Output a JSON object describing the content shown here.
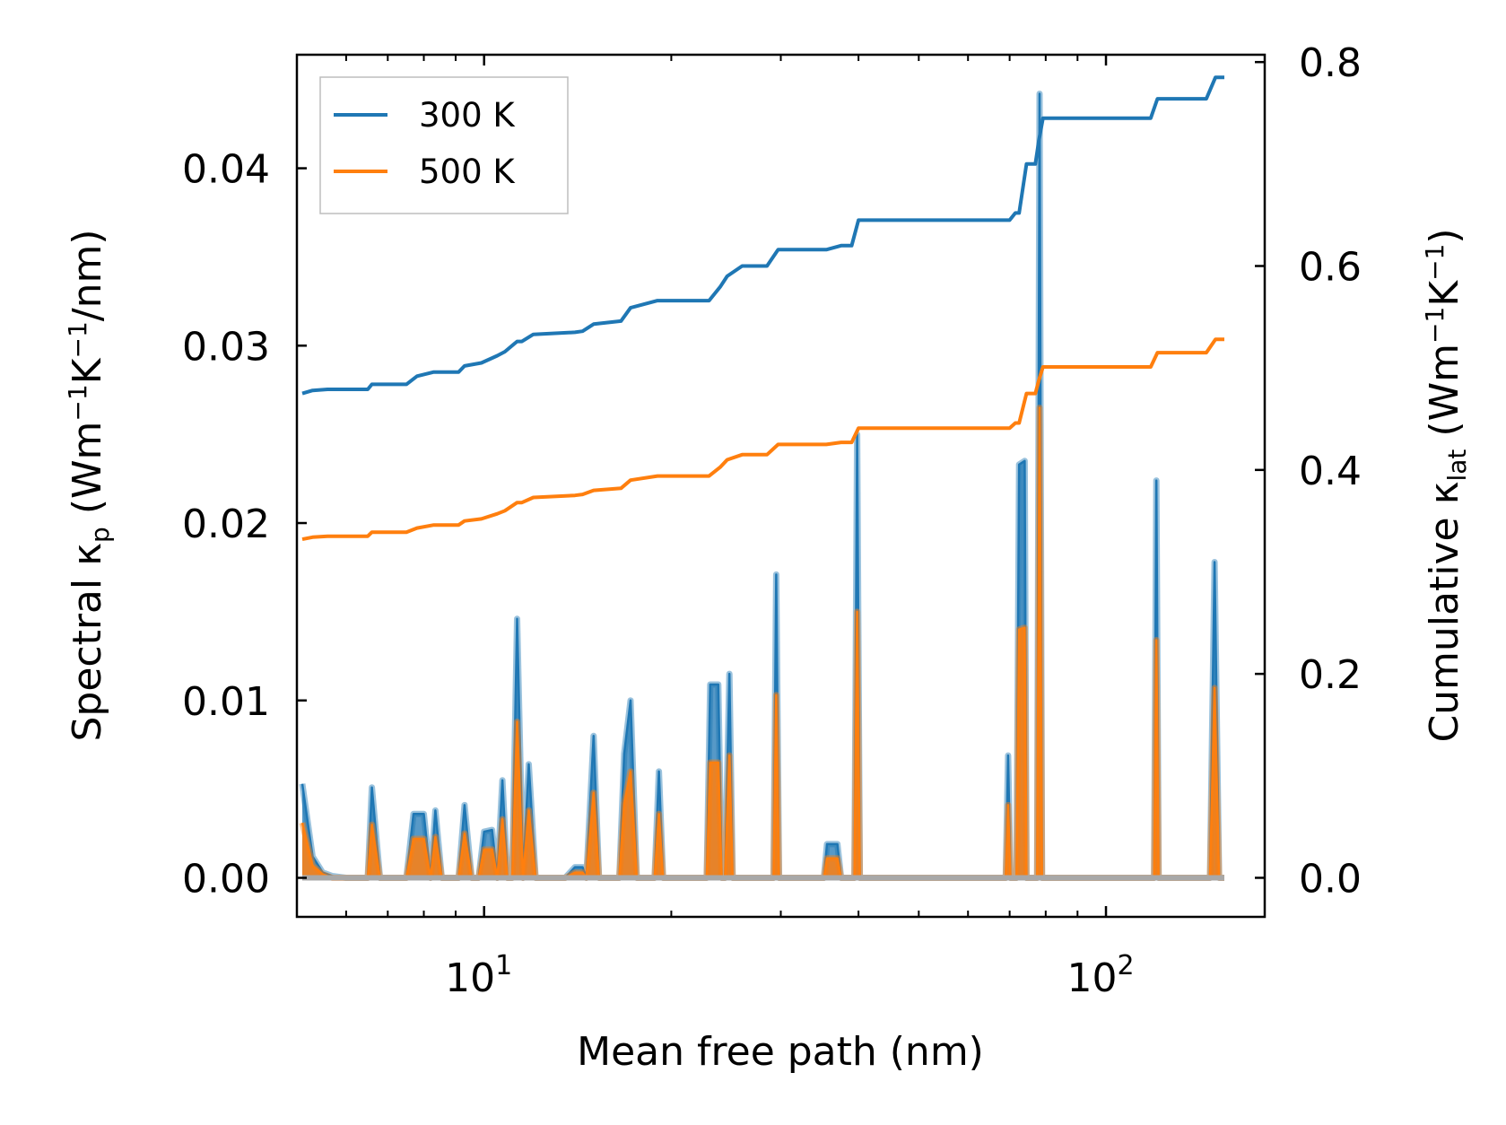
{
  "chart_data": {
    "type": "line",
    "x_scale": "log",
    "xlim": [
      5.0,
      180.0
    ],
    "xlabel": "Mean free path (nm)",
    "x_ticks": [
      {
        "value": 10,
        "base": "10",
        "exp": "1"
      },
      {
        "value": 100,
        "base": "10",
        "exp": "2"
      }
    ],
    "ylabel_left": {
      "main": "Spectral κ",
      "sub": "p",
      "unit_open": " (Wm",
      "exp1": "−1",
      "mid": "K",
      "exp2": "−1",
      "unit_close": "/nm)"
    },
    "ylabel_right": {
      "main": "Cumulative κ",
      "sub": "lat",
      "unit_open": " (Wm",
      "exp1": "−1",
      "mid": "K",
      "exp2": "−1",
      "unit_close": ")"
    },
    "ylim_left": [
      -0.0022,
      0.0464
    ],
    "ylim_right": [
      -0.0383,
      0.8072
    ],
    "yticks_left": [
      "0.00",
      "0.01",
      "0.02",
      "0.03",
      "0.04"
    ],
    "yticks_left_values": [
      0.0,
      0.01,
      0.02,
      0.03,
      0.04
    ],
    "yticks_right": [
      "0.0",
      "0.2",
      "0.4",
      "0.6",
      "0.8"
    ],
    "yticks_right_values": [
      0.0,
      0.2,
      0.4,
      0.6,
      0.8
    ],
    "legend": {
      "position": "top-left",
      "entries": [
        {
          "label": "300 K",
          "color": "#1f77b4"
        },
        {
          "label": "500 K",
          "color": "#ff7f0e"
        }
      ]
    },
    "series": [
      {
        "name": "300 K",
        "axis": "right",
        "kind": "cumulative",
        "color": "#1f77b4",
        "points": [
          [
            5.1,
            0.475
          ],
          [
            5.3,
            0.478
          ],
          [
            5.6,
            0.479
          ],
          [
            6.5,
            0.479
          ],
          [
            6.6,
            0.484
          ],
          [
            7.5,
            0.484
          ],
          [
            7.8,
            0.492
          ],
          [
            8.3,
            0.496
          ],
          [
            9.1,
            0.496
          ],
          [
            9.3,
            0.502
          ],
          [
            9.9,
            0.505
          ],
          [
            10.5,
            0.512
          ],
          [
            10.8,
            0.516
          ],
          [
            11.3,
            0.526
          ],
          [
            11.5,
            0.526
          ],
          [
            12.0,
            0.533
          ],
          [
            14.0,
            0.535
          ],
          [
            14.4,
            0.536
          ],
          [
            15.0,
            0.543
          ],
          [
            16.6,
            0.546
          ],
          [
            17.2,
            0.559
          ],
          [
            19.0,
            0.566
          ],
          [
            23.0,
            0.566
          ],
          [
            24.0,
            0.58
          ],
          [
            24.6,
            0.59
          ],
          [
            26.0,
            0.6
          ],
          [
            28.5,
            0.6
          ],
          [
            29.7,
            0.616
          ],
          [
            35.5,
            0.616
          ],
          [
            37.5,
            0.62
          ],
          [
            39.0,
            0.62
          ],
          [
            40.0,
            0.645
          ],
          [
            70.0,
            0.645
          ],
          [
            71.5,
            0.652
          ],
          [
            72.5,
            0.652
          ],
          [
            74.5,
            0.7
          ],
          [
            77.0,
            0.7
          ],
          [
            78.0,
            0.723
          ],
          [
            79.2,
            0.745
          ],
          [
            118.0,
            0.745
          ],
          [
            121.0,
            0.764
          ],
          [
            145.0,
            0.764
          ],
          [
            150.0,
            0.785
          ],
          [
            155.0,
            0.785
          ]
        ]
      },
      {
        "name": "500 K",
        "axis": "right",
        "kind": "cumulative",
        "color": "#ff7f0e",
        "points": [
          [
            5.1,
            0.332
          ],
          [
            5.3,
            0.334
          ],
          [
            5.6,
            0.335
          ],
          [
            6.5,
            0.335
          ],
          [
            6.6,
            0.339
          ],
          [
            7.5,
            0.339
          ],
          [
            7.8,
            0.343
          ],
          [
            8.3,
            0.346
          ],
          [
            9.1,
            0.346
          ],
          [
            9.3,
            0.35
          ],
          [
            9.9,
            0.352
          ],
          [
            10.5,
            0.357
          ],
          [
            10.8,
            0.36
          ],
          [
            11.3,
            0.368
          ],
          [
            11.5,
            0.368
          ],
          [
            12.0,
            0.373
          ],
          [
            14.0,
            0.375
          ],
          [
            14.4,
            0.376
          ],
          [
            15.0,
            0.38
          ],
          [
            16.6,
            0.382
          ],
          [
            17.2,
            0.39
          ],
          [
            19.0,
            0.394
          ],
          [
            23.0,
            0.394
          ],
          [
            24.0,
            0.403
          ],
          [
            24.6,
            0.41
          ],
          [
            26.0,
            0.415
          ],
          [
            28.5,
            0.415
          ],
          [
            29.7,
            0.425
          ],
          [
            35.5,
            0.425
          ],
          [
            37.5,
            0.427
          ],
          [
            39.0,
            0.427
          ],
          [
            40.0,
            0.441
          ],
          [
            70.0,
            0.441
          ],
          [
            71.5,
            0.446
          ],
          [
            72.5,
            0.446
          ],
          [
            74.5,
            0.475
          ],
          [
            77.0,
            0.475
          ],
          [
            78.0,
            0.488
          ],
          [
            79.2,
            0.501
          ],
          [
            118.0,
            0.501
          ],
          [
            121.0,
            0.515
          ],
          [
            145.0,
            0.515
          ],
          [
            150.0,
            0.528
          ],
          [
            155.0,
            0.528
          ]
        ]
      },
      {
        "name": "300 K spectral",
        "axis": "left",
        "kind": "spectral",
        "color": "#1f77b4",
        "points": [
          [
            5.1,
            0.0053
          ],
          [
            5.3,
            0.0012
          ],
          [
            5.5,
            0.0003
          ],
          [
            5.7,
            0.0001
          ],
          [
            6.0,
            0.0
          ],
          [
            6.3,
            0.0
          ],
          [
            6.5,
            0.0
          ],
          [
            6.6,
            0.0051
          ],
          [
            6.8,
            0.0
          ],
          [
            7.5,
            0.0
          ],
          [
            7.7,
            0.0036
          ],
          [
            8.0,
            0.0036
          ],
          [
            8.2,
            0.0
          ],
          [
            8.35,
            0.0038
          ],
          [
            8.55,
            0.0
          ],
          [
            9.1,
            0.0
          ],
          [
            9.3,
            0.0041
          ],
          [
            9.55,
            0.0
          ],
          [
            9.8,
            0.0
          ],
          [
            10.0,
            0.0026
          ],
          [
            10.3,
            0.0027
          ],
          [
            10.5,
            0.0
          ],
          [
            10.7,
            0.0055
          ],
          [
            10.9,
            0.0
          ],
          [
            11.1,
            0.0
          ],
          [
            11.3,
            0.0146
          ],
          [
            11.55,
            0.0
          ],
          [
            11.8,
            0.0064
          ],
          [
            12.1,
            0.0
          ],
          [
            13.5,
            0.0
          ],
          [
            14.0,
            0.0006
          ],
          [
            14.4,
            0.0006
          ],
          [
            14.6,
            0.0
          ],
          [
            15.0,
            0.008
          ],
          [
            15.3,
            0.0
          ],
          [
            16.5,
            0.0
          ],
          [
            16.8,
            0.007
          ],
          [
            17.2,
            0.01
          ],
          [
            17.6,
            0.0
          ],
          [
            18.8,
            0.0
          ],
          [
            19.1,
            0.006
          ],
          [
            19.4,
            0.0
          ],
          [
            22.8,
            0.0
          ],
          [
            23.1,
            0.0109
          ],
          [
            23.8,
            0.0109
          ],
          [
            24.1,
            0.0
          ],
          [
            24.4,
            0.0
          ],
          [
            24.8,
            0.0115
          ],
          [
            25.1,
            0.0
          ],
          [
            29.2,
            0.0
          ],
          [
            29.5,
            0.0171
          ],
          [
            29.8,
            0.0
          ],
          [
            35.2,
            0.0
          ],
          [
            35.6,
            0.0019
          ],
          [
            37.0,
            0.0019
          ],
          [
            37.5,
            0.0
          ],
          [
            39.4,
            0.0
          ],
          [
            39.8,
            0.025
          ],
          [
            40.2,
            0.0
          ],
          [
            69.0,
            0.0
          ],
          [
            69.6,
            0.0069
          ],
          [
            70.2,
            0.0
          ],
          [
            71.8,
            0.0
          ],
          [
            72.5,
            0.0233
          ],
          [
            74.0,
            0.0235
          ],
          [
            74.5,
            0.0
          ],
          [
            77.5,
            0.0
          ],
          [
            78.2,
            0.0442
          ],
          [
            78.9,
            0.0
          ],
          [
            119.5,
            0.0
          ],
          [
            120.5,
            0.0224
          ],
          [
            121.5,
            0.0
          ],
          [
            147.0,
            0.0
          ],
          [
            149.5,
            0.0178
          ],
          [
            152.0,
            0.0
          ],
          [
            155.0,
            0.0
          ]
        ]
      },
      {
        "name": "500 K spectral",
        "axis": "left",
        "kind": "spectral",
        "color": "#ff7f0e",
        "points": [
          [
            5.1,
            0.0031
          ],
          [
            5.3,
            0.0007
          ],
          [
            5.5,
            0.0002
          ],
          [
            5.7,
            0.0
          ],
          [
            6.5,
            0.0
          ],
          [
            6.6,
            0.003
          ],
          [
            6.8,
            0.0
          ],
          [
            7.5,
            0.0
          ],
          [
            7.7,
            0.0022
          ],
          [
            8.0,
            0.0022
          ],
          [
            8.2,
            0.0
          ],
          [
            8.35,
            0.0023
          ],
          [
            8.55,
            0.0
          ],
          [
            9.1,
            0.0
          ],
          [
            9.3,
            0.0025
          ],
          [
            9.55,
            0.0
          ],
          [
            9.8,
            0.0
          ],
          [
            10.0,
            0.0016
          ],
          [
            10.3,
            0.0016
          ],
          [
            10.5,
            0.0
          ],
          [
            10.7,
            0.0033
          ],
          [
            10.9,
            0.0
          ],
          [
            11.1,
            0.0
          ],
          [
            11.3,
            0.0088
          ],
          [
            11.55,
            0.0
          ],
          [
            11.8,
            0.0038
          ],
          [
            12.1,
            0.0
          ],
          [
            13.5,
            0.0
          ],
          [
            14.0,
            0.0003
          ],
          [
            14.4,
            0.0003
          ],
          [
            14.6,
            0.0
          ],
          [
            15.0,
            0.0048
          ],
          [
            15.3,
            0.0
          ],
          [
            16.5,
            0.0
          ],
          [
            16.8,
            0.0042
          ],
          [
            17.2,
            0.006
          ],
          [
            17.6,
            0.0
          ],
          [
            18.8,
            0.0
          ],
          [
            19.1,
            0.0036
          ],
          [
            19.4,
            0.0
          ],
          [
            22.8,
            0.0
          ],
          [
            23.1,
            0.0065
          ],
          [
            23.8,
            0.0065
          ],
          [
            24.1,
            0.0
          ],
          [
            24.4,
            0.0
          ],
          [
            24.8,
            0.0069
          ],
          [
            25.1,
            0.0
          ],
          [
            29.2,
            0.0
          ],
          [
            29.5,
            0.0103
          ],
          [
            29.8,
            0.0
          ],
          [
            35.2,
            0.0
          ],
          [
            35.6,
            0.0011
          ],
          [
            37.0,
            0.0011
          ],
          [
            37.5,
            0.0
          ],
          [
            39.4,
            0.0
          ],
          [
            39.8,
            0.015
          ],
          [
            40.2,
            0.0
          ],
          [
            69.0,
            0.0
          ],
          [
            69.6,
            0.0041
          ],
          [
            70.2,
            0.0
          ],
          [
            71.8,
            0.0
          ],
          [
            72.5,
            0.014
          ],
          [
            74.0,
            0.0141
          ],
          [
            74.5,
            0.0
          ],
          [
            77.5,
            0.0
          ],
          [
            78.2,
            0.0265
          ],
          [
            78.9,
            0.0
          ],
          [
            119.5,
            0.0
          ],
          [
            120.5,
            0.0134
          ],
          [
            121.5,
            0.0
          ],
          [
            147.0,
            0.0
          ],
          [
            149.5,
            0.0107
          ],
          [
            152.0,
            0.0
          ],
          [
            155.0,
            0.0
          ]
        ]
      }
    ]
  }
}
